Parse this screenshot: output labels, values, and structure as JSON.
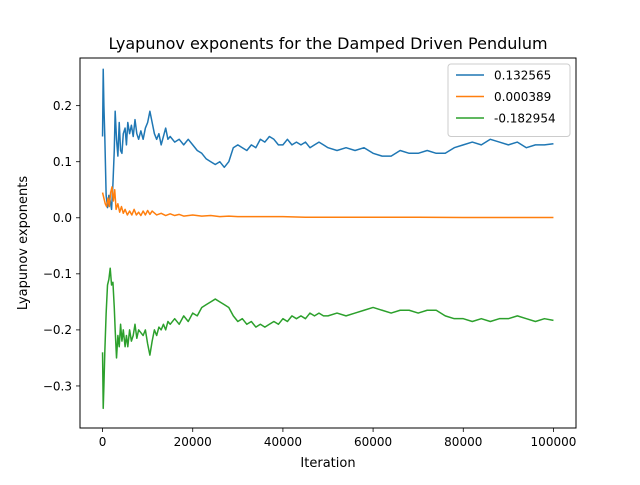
{
  "chart_data": {
    "type": "line",
    "title": "Lyapunov exponents for the Damped Driven Pendulum",
    "xlabel": "Iteration",
    "ylabel": "Lyapunov exponents",
    "xlim": [
      -5000,
      105000
    ],
    "ylim": [
      -0.375,
      0.285
    ],
    "xticks": [
      0,
      20000,
      40000,
      60000,
      80000,
      100000
    ],
    "xtick_labels": [
      "0",
      "20000",
      "40000",
      "60000",
      "80000",
      "100000"
    ],
    "yticks": [
      -0.3,
      -0.2,
      -0.1,
      0.0,
      0.1,
      0.2
    ],
    "ytick_labels": [
      "−0.3",
      "−0.2",
      "−0.1",
      "0.0",
      "0.1",
      "0.2"
    ],
    "grid": false,
    "legend": "upper right",
    "series": [
      {
        "name": "0.132565",
        "color": "#1f77b4",
        "points": [
          [
            0,
            0.145
          ],
          [
            150,
            0.265
          ],
          [
            300,
            0.2
          ],
          [
            500,
            0.145
          ],
          [
            800,
            0.04
          ],
          [
            1100,
            0.018
          ],
          [
            1400,
            0.04
          ],
          [
            1700,
            0.03
          ],
          [
            2000,
            0.015
          ],
          [
            2300,
            0.06
          ],
          [
            2600,
            0.12
          ],
          [
            2800,
            0.19
          ],
          [
            3100,
            0.14
          ],
          [
            3400,
            0.11
          ],
          [
            3700,
            0.17
          ],
          [
            4000,
            0.12
          ],
          [
            4300,
            0.115
          ],
          [
            4600,
            0.15
          ],
          [
            5000,
            0.16
          ],
          [
            5300,
            0.13
          ],
          [
            5600,
            0.17
          ],
          [
            6000,
            0.15
          ],
          [
            6400,
            0.165
          ],
          [
            6800,
            0.145
          ],
          [
            7200,
            0.175
          ],
          [
            7600,
            0.15
          ],
          [
            8000,
            0.14
          ],
          [
            8500,
            0.155
          ],
          [
            9000,
            0.14
          ],
          [
            9500,
            0.16
          ],
          [
            10000,
            0.17
          ],
          [
            10500,
            0.19
          ],
          [
            11000,
            0.17
          ],
          [
            11500,
            0.15
          ],
          [
            12000,
            0.14
          ],
          [
            12500,
            0.15
          ],
          [
            13000,
            0.13
          ],
          [
            13500,
            0.145
          ],
          [
            14000,
            0.16
          ],
          [
            14500,
            0.14
          ],
          [
            15000,
            0.145
          ],
          [
            16000,
            0.135
          ],
          [
            17000,
            0.14
          ],
          [
            18000,
            0.13
          ],
          [
            19000,
            0.14
          ],
          [
            20000,
            0.13
          ],
          [
            21000,
            0.12
          ],
          [
            22000,
            0.115
          ],
          [
            23000,
            0.105
          ],
          [
            24000,
            0.1
          ],
          [
            25000,
            0.095
          ],
          [
            26000,
            0.1
          ],
          [
            27000,
            0.09
          ],
          [
            28000,
            0.1
          ],
          [
            29000,
            0.125
          ],
          [
            30000,
            0.13
          ],
          [
            31000,
            0.125
          ],
          [
            32000,
            0.12
          ],
          [
            33000,
            0.13
          ],
          [
            34000,
            0.125
          ],
          [
            35000,
            0.14
          ],
          [
            36000,
            0.135
          ],
          [
            37000,
            0.145
          ],
          [
            38000,
            0.14
          ],
          [
            39000,
            0.13
          ],
          [
            40000,
            0.13
          ],
          [
            41000,
            0.14
          ],
          [
            42000,
            0.13
          ],
          [
            43000,
            0.135
          ],
          [
            44000,
            0.13
          ],
          [
            45000,
            0.135
          ],
          [
            46000,
            0.125
          ],
          [
            47000,
            0.13
          ],
          [
            48000,
            0.135
          ],
          [
            49000,
            0.13
          ],
          [
            50000,
            0.125
          ],
          [
            52000,
            0.12
          ],
          [
            54000,
            0.125
          ],
          [
            56000,
            0.12
          ],
          [
            58000,
            0.125
          ],
          [
            60000,
            0.115
          ],
          [
            62000,
            0.11
          ],
          [
            64000,
            0.11
          ],
          [
            66000,
            0.12
          ],
          [
            68000,
            0.115
          ],
          [
            70000,
            0.115
          ],
          [
            72000,
            0.12
          ],
          [
            74000,
            0.115
          ],
          [
            76000,
            0.115
          ],
          [
            78000,
            0.125
          ],
          [
            80000,
            0.13
          ],
          [
            82000,
            0.135
          ],
          [
            84000,
            0.13
          ],
          [
            86000,
            0.14
          ],
          [
            88000,
            0.135
          ],
          [
            90000,
            0.13
          ],
          [
            92000,
            0.135
          ],
          [
            94000,
            0.125
          ],
          [
            96000,
            0.13
          ],
          [
            98000,
            0.13
          ],
          [
            100000,
            0.132
          ]
        ]
      },
      {
        "name": "0.000389",
        "color": "#ff7f0e",
        "points": [
          [
            0,
            0.045
          ],
          [
            300,
            0.035
          ],
          [
            600,
            0.025
          ],
          [
            900,
            0.02
          ],
          [
            1200,
            0.035
          ],
          [
            1500,
            0.02
          ],
          [
            1800,
            0.045
          ],
          [
            2100,
            0.055
          ],
          [
            2400,
            0.03
          ],
          [
            2700,
            0.05
          ],
          [
            3000,
            0.015
          ],
          [
            3400,
            0.025
          ],
          [
            3800,
            0.01
          ],
          [
            4200,
            0.02
          ],
          [
            4600,
            0.008
          ],
          [
            5000,
            0.015
          ],
          [
            5500,
            0.005
          ],
          [
            6000,
            0.012
          ],
          [
            6500,
            0.005
          ],
          [
            7000,
            0.015
          ],
          [
            7500,
            0.005
          ],
          [
            8000,
            0.01
          ],
          [
            8500,
            0.004
          ],
          [
            9000,
            0.012
          ],
          [
            9500,
            0.005
          ],
          [
            10000,
            0.013
          ],
          [
            10500,
            0.006
          ],
          [
            11000,
            0.012
          ],
          [
            12000,
            0.005
          ],
          [
            13000,
            0.008
          ],
          [
            14000,
            0.004
          ],
          [
            15000,
            0.007
          ],
          [
            16000,
            0.004
          ],
          [
            17000,
            0.006
          ],
          [
            18000,
            0.003
          ],
          [
            20000,
            0.005
          ],
          [
            22000,
            0.003
          ],
          [
            24000,
            0.004
          ],
          [
            26000,
            0.002
          ],
          [
            28000,
            0.003
          ],
          [
            30000,
            0.002
          ],
          [
            35000,
            0.002
          ],
          [
            40000,
            0.002
          ],
          [
            45000,
            0.001
          ],
          [
            50000,
            0.001
          ],
          [
            60000,
            0.001
          ],
          [
            70000,
            0.001
          ],
          [
            80000,
            0.0005
          ],
          [
            90000,
            0.0005
          ],
          [
            100000,
            0.0004
          ]
        ]
      },
      {
        "name": "-0.182954",
        "color": "#2ca02c",
        "points": [
          [
            0,
            -0.24
          ],
          [
            150,
            -0.34
          ],
          [
            300,
            -0.3
          ],
          [
            500,
            -0.24
          ],
          [
            800,
            -0.17
          ],
          [
            1100,
            -0.12
          ],
          [
            1400,
            -0.11
          ],
          [
            1700,
            -0.09
          ],
          [
            2000,
            -0.12
          ],
          [
            2300,
            -0.115
          ],
          [
            2600,
            -0.16
          ],
          [
            2800,
            -0.2
          ],
          [
            3100,
            -0.25
          ],
          [
            3400,
            -0.21
          ],
          [
            3700,
            -0.23
          ],
          [
            4000,
            -0.19
          ],
          [
            4300,
            -0.22
          ],
          [
            4600,
            -0.2
          ],
          [
            5000,
            -0.23
          ],
          [
            5300,
            -0.21
          ],
          [
            5600,
            -0.23
          ],
          [
            6000,
            -0.2
          ],
          [
            6400,
            -0.22
          ],
          [
            6800,
            -0.21
          ],
          [
            7200,
            -0.19
          ],
          [
            7600,
            -0.215
          ],
          [
            8000,
            -0.2
          ],
          [
            8500,
            -0.205
          ],
          [
            9000,
            -0.21
          ],
          [
            9500,
            -0.2
          ],
          [
            10000,
            -0.225
          ],
          [
            10500,
            -0.245
          ],
          [
            11000,
            -0.22
          ],
          [
            11500,
            -0.2
          ],
          [
            12000,
            -0.21
          ],
          [
            12500,
            -0.195
          ],
          [
            13000,
            -0.2
          ],
          [
            13500,
            -0.19
          ],
          [
            14000,
            -0.2
          ],
          [
            14500,
            -0.185
          ],
          [
            15000,
            -0.19
          ],
          [
            16000,
            -0.18
          ],
          [
            17000,
            -0.19
          ],
          [
            18000,
            -0.175
          ],
          [
            19000,
            -0.185
          ],
          [
            20000,
            -0.17
          ],
          [
            21000,
            -0.175
          ],
          [
            22000,
            -0.16
          ],
          [
            23000,
            -0.155
          ],
          [
            24000,
            -0.15
          ],
          [
            25000,
            -0.145
          ],
          [
            26000,
            -0.15
          ],
          [
            27000,
            -0.155
          ],
          [
            28000,
            -0.16
          ],
          [
            29000,
            -0.175
          ],
          [
            30000,
            -0.185
          ],
          [
            31000,
            -0.18
          ],
          [
            32000,
            -0.19
          ],
          [
            33000,
            -0.185
          ],
          [
            34000,
            -0.195
          ],
          [
            35000,
            -0.19
          ],
          [
            36000,
            -0.195
          ],
          [
            37000,
            -0.19
          ],
          [
            38000,
            -0.185
          ],
          [
            39000,
            -0.19
          ],
          [
            40000,
            -0.18
          ],
          [
            41000,
            -0.185
          ],
          [
            42000,
            -0.175
          ],
          [
            43000,
            -0.18
          ],
          [
            44000,
            -0.175
          ],
          [
            45000,
            -0.18
          ],
          [
            46000,
            -0.17
          ],
          [
            47000,
            -0.175
          ],
          [
            48000,
            -0.17
          ],
          [
            49000,
            -0.175
          ],
          [
            50000,
            -0.175
          ],
          [
            52000,
            -0.17
          ],
          [
            54000,
            -0.175
          ],
          [
            56000,
            -0.17
          ],
          [
            58000,
            -0.165
          ],
          [
            60000,
            -0.16
          ],
          [
            62000,
            -0.165
          ],
          [
            64000,
            -0.17
          ],
          [
            66000,
            -0.165
          ],
          [
            68000,
            -0.165
          ],
          [
            70000,
            -0.17
          ],
          [
            72000,
            -0.165
          ],
          [
            74000,
            -0.165
          ],
          [
            76000,
            -0.175
          ],
          [
            78000,
            -0.18
          ],
          [
            80000,
            -0.18
          ],
          [
            82000,
            -0.185
          ],
          [
            84000,
            -0.18
          ],
          [
            86000,
            -0.185
          ],
          [
            88000,
            -0.18
          ],
          [
            90000,
            -0.18
          ],
          [
            92000,
            -0.175
          ],
          [
            94000,
            -0.18
          ],
          [
            96000,
            -0.185
          ],
          [
            98000,
            -0.18
          ],
          [
            100000,
            -0.183
          ]
        ]
      }
    ]
  }
}
